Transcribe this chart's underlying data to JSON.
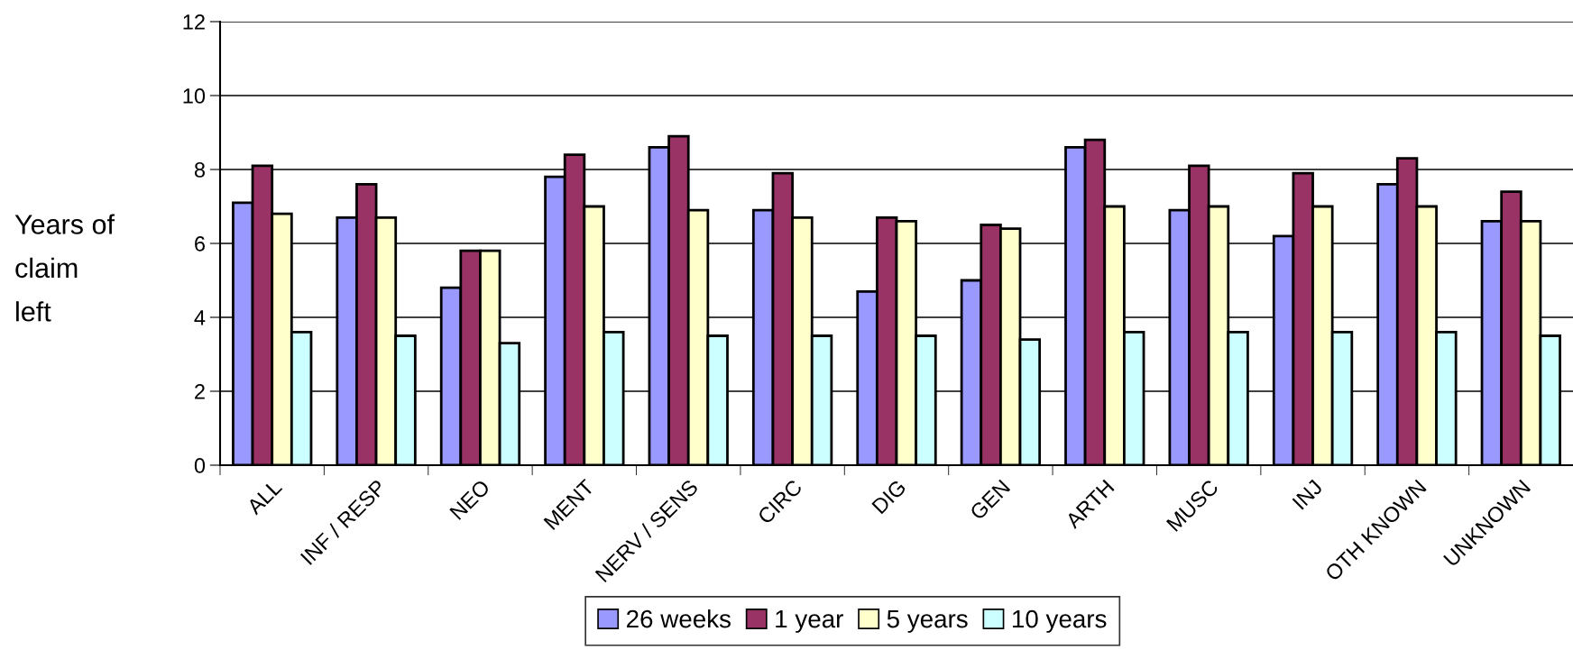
{
  "chart_data": {
    "type": "bar",
    "ylabel": "Years of\nclaim\nleft",
    "categories": [
      "ALL",
      "INF / RESP",
      "NEO",
      "MENT",
      "NERV / SENS",
      "CIRC",
      "DIG",
      "GEN",
      "ARTH",
      "MUSC",
      "INJ",
      "OTH KNOWN",
      "UNKNOWN"
    ],
    "series": [
      {
        "name": "26 weeks",
        "color": "#9999ff",
        "values": [
          7.1,
          6.7,
          4.8,
          7.8,
          8.6,
          6.9,
          4.7,
          5.0,
          8.6,
          6.9,
          6.2,
          7.6,
          6.6
        ]
      },
      {
        "name": "1 year",
        "color": "#993366",
        "values": [
          8.1,
          7.6,
          5.8,
          8.4,
          8.9,
          7.9,
          6.7,
          6.5,
          8.8,
          8.1,
          7.9,
          8.3,
          7.4
        ]
      },
      {
        "name": "5 years",
        "color": "#ffffcc",
        "values": [
          6.8,
          6.7,
          5.8,
          7.0,
          6.9,
          6.7,
          6.6,
          6.4,
          7.0,
          7.0,
          7.0,
          7.0,
          6.6
        ]
      },
      {
        "name": "10 years",
        "color": "#ccffff",
        "values": [
          3.6,
          3.5,
          3.3,
          3.6,
          3.5,
          3.5,
          3.5,
          3.4,
          3.6,
          3.6,
          3.6,
          3.6,
          3.5
        ]
      }
    ],
    "ylim": [
      0,
      12
    ],
    "yticks": [
      0,
      2,
      4,
      6,
      8,
      10,
      12
    ],
    "grid": "y",
    "legend": "bottom"
  }
}
